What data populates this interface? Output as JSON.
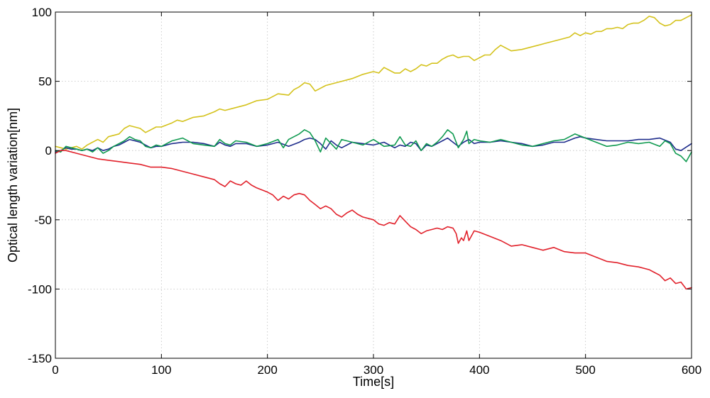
{
  "chart_data": {
    "type": "line",
    "title": "",
    "xlabel": "Time[s]",
    "ylabel": "Optical length variation[nm]",
    "xlim": [
      0,
      600
    ],
    "ylim": [
      -150,
      100
    ],
    "xticks": [
      0,
      100,
      200,
      300,
      400,
      500,
      600
    ],
    "yticks": [
      -150,
      -100,
      -50,
      0,
      50,
      100
    ],
    "xtick_labels": [
      "0",
      "100",
      "200",
      "300",
      "400",
      "500",
      "600"
    ],
    "ytick_labels": [
      "-150",
      "-100",
      "-50",
      "0",
      "50",
      "100"
    ],
    "grid": true,
    "legend": "none",
    "series": [
      {
        "color": "#d4c21c",
        "x": [
          0,
          10,
          20,
          25,
          30,
          40,
          45,
          50,
          60,
          65,
          70,
          80,
          85,
          90,
          95,
          100,
          110,
          115,
          120,
          130,
          140,
          150,
          155,
          160,
          170,
          180,
          190,
          200,
          210,
          220,
          225,
          230,
          235,
          240,
          245,
          250,
          255,
          260,
          270,
          280,
          290,
          300,
          305,
          310,
          315,
          320,
          325,
          330,
          335,
          340,
          345,
          350,
          355,
          360,
          365,
          370,
          375,
          380,
          385,
          390,
          395,
          400,
          405,
          410,
          415,
          420,
          425,
          430,
          440,
          450,
          460,
          470,
          480,
          485,
          490,
          495,
          500,
          505,
          510,
          515,
          520,
          525,
          530,
          535,
          540,
          545,
          550,
          555,
          560,
          565,
          570,
          575,
          580,
          585,
          590,
          595,
          600
        ],
        "y": [
          3,
          1,
          3,
          1,
          4,
          8,
          6,
          10,
          12,
          16,
          18,
          16,
          13,
          15,
          17,
          17,
          20,
          22,
          21,
          24,
          25,
          28,
          30,
          29,
          31,
          33,
          36,
          37,
          41,
          40,
          44,
          46,
          49,
          48,
          43,
          45,
          47,
          48,
          50,
          52,
          55,
          57,
          56,
          60,
          58,
          56,
          56,
          59,
          57,
          59,
          62,
          61,
          63,
          63,
          66,
          68,
          69,
          67,
          68,
          68,
          65,
          67,
          69,
          69,
          73,
          76,
          74,
          72,
          73,
          75,
          77,
          79,
          81,
          82,
          85,
          83,
          85,
          84,
          86,
          86,
          88,
          88,
          89,
          88,
          91,
          92,
          92,
          94,
          97,
          96,
          92,
          90,
          91,
          94,
          94,
          96,
          98
        ]
      },
      {
        "color": "#1f2d8c",
        "x": [
          0,
          5,
          10,
          15,
          20,
          25,
          30,
          35,
          40,
          45,
          50,
          55,
          60,
          65,
          70,
          75,
          80,
          85,
          90,
          95,
          100,
          110,
          120,
          130,
          140,
          150,
          155,
          160,
          165,
          170,
          180,
          190,
          200,
          210,
          220,
          230,
          235,
          240,
          245,
          250,
          255,
          260,
          265,
          270,
          280,
          290,
          300,
          310,
          320,
          325,
          330,
          335,
          340,
          345,
          350,
          355,
          360,
          365,
          370,
          375,
          380,
          385,
          390,
          395,
          400,
          410,
          420,
          430,
          440,
          450,
          460,
          470,
          480,
          490,
          495,
          500,
          510,
          520,
          530,
          540,
          550,
          560,
          570,
          580,
          585,
          590,
          600
        ],
        "y": [
          -1,
          0,
          2,
          1,
          1,
          0,
          1,
          0,
          2,
          0,
          1,
          3,
          4,
          6,
          8,
          7,
          6,
          4,
          2,
          3,
          3,
          5,
          6,
          6,
          5,
          3,
          6,
          4,
          3,
          5,
          5,
          3,
          4,
          6,
          3,
          6,
          8,
          9,
          8,
          5,
          1,
          7,
          4,
          2,
          6,
          5,
          4,
          6,
          2,
          4,
          3,
          6,
          5,
          0,
          4,
          3,
          5,
          7,
          9,
          6,
          3,
          6,
          8,
          5,
          6,
          6,
          7,
          6,
          5,
          3,
          4,
          6,
          6,
          9,
          10,
          9,
          8,
          7,
          7,
          7,
          8,
          8,
          9,
          6,
          1,
          0,
          5
        ]
      },
      {
        "color": "#0f9a50",
        "x": [
          0,
          5,
          10,
          15,
          20,
          25,
          30,
          35,
          40,
          45,
          50,
          55,
          60,
          65,
          70,
          75,
          80,
          85,
          90,
          95,
          100,
          110,
          120,
          130,
          140,
          150,
          155,
          160,
          165,
          170,
          180,
          190,
          200,
          210,
          215,
          220,
          230,
          235,
          240,
          245,
          250,
          255,
          260,
          265,
          270,
          280,
          290,
          300,
          310,
          320,
          325,
          330,
          335,
          340,
          345,
          350,
          355,
          360,
          365,
          370,
          375,
          378,
          380,
          385,
          388,
          390,
          395,
          400,
          410,
          420,
          430,
          440,
          450,
          460,
          470,
          480,
          490,
          500,
          510,
          520,
          530,
          540,
          550,
          560,
          570,
          575,
          580,
          585,
          590,
          595,
          600
        ],
        "y": [
          0,
          -1,
          3,
          2,
          1,
          0,
          1,
          -1,
          2,
          -2,
          0,
          3,
          5,
          7,
          10,
          8,
          7,
          3,
          2,
          4,
          3,
          7,
          9,
          5,
          4,
          3,
          8,
          5,
          4,
          7,
          6,
          3,
          5,
          8,
          2,
          8,
          12,
          15,
          13,
          7,
          -1,
          9,
          5,
          1,
          8,
          6,
          4,
          8,
          3,
          4,
          10,
          4,
          3,
          7,
          0,
          5,
          3,
          6,
          10,
          15,
          12,
          6,
          2,
          8,
          14,
          5,
          8,
          7,
          6,
          8,
          6,
          4,
          3,
          5,
          7,
          8,
          12,
          9,
          6,
          3,
          4,
          6,
          5,
          6,
          3,
          7,
          5,
          -2,
          -4,
          -8,
          -1
        ]
      },
      {
        "color": "#e1212b",
        "x": [
          0,
          5,
          10,
          20,
          30,
          40,
          50,
          60,
          70,
          80,
          90,
          100,
          110,
          120,
          130,
          140,
          150,
          155,
          160,
          165,
          170,
          175,
          180,
          185,
          190,
          200,
          205,
          210,
          215,
          220,
          225,
          230,
          235,
          240,
          245,
          250,
          255,
          260,
          265,
          270,
          275,
          280,
          285,
          290,
          300,
          305,
          310,
          315,
          320,
          325,
          330,
          335,
          340,
          345,
          350,
          355,
          360,
          365,
          370,
          375,
          378,
          380,
          383,
          385,
          388,
          390,
          395,
          400,
          410,
          420,
          430,
          440,
          450,
          460,
          470,
          480,
          490,
          500,
          510,
          520,
          530,
          540,
          550,
          560,
          565,
          570,
          575,
          580,
          585,
          590,
          595,
          600
        ],
        "y": [
          -2,
          0,
          0,
          -2,
          -4,
          -6,
          -7,
          -8,
          -9,
          -10,
          -12,
          -12,
          -13,
          -15,
          -17,
          -19,
          -21,
          -24,
          -26,
          -22,
          -24,
          -25,
          -22,
          -25,
          -27,
          -30,
          -32,
          -36,
          -33,
          -35,
          -32,
          -31,
          -32,
          -36,
          -39,
          -42,
          -40,
          -42,
          -46,
          -48,
          -45,
          -43,
          -46,
          -48,
          -50,
          -53,
          -54,
          -52,
          -53,
          -47,
          -51,
          -55,
          -57,
          -60,
          -58,
          -57,
          -56,
          -57,
          -55,
          -56,
          -60,
          -67,
          -63,
          -65,
          -58,
          -65,
          -58,
          -59,
          -62,
          -65,
          -69,
          -68,
          -70,
          -72,
          -70,
          -73,
          -74,
          -74,
          -77,
          -80,
          -81,
          -83,
          -84,
          -86,
          -88,
          -90,
          -94,
          -92,
          -96,
          -95,
          -100,
          -99
        ]
      }
    ]
  }
}
